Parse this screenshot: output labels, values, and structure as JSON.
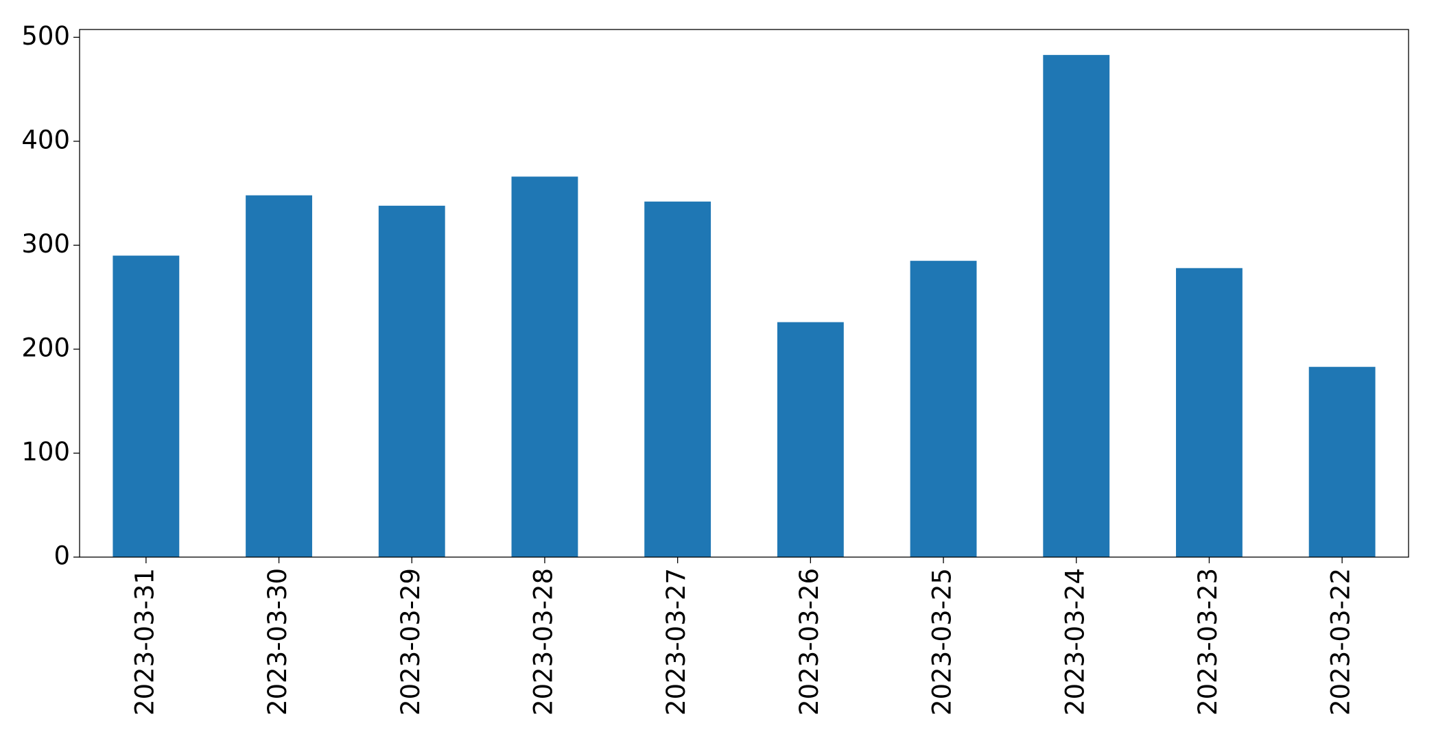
{
  "chart_data": {
    "type": "bar",
    "categories": [
      "2023-03-31",
      "2023-03-30",
      "2023-03-29",
      "2023-03-28",
      "2023-03-27",
      "2023-03-26",
      "2023-03-25",
      "2023-03-24",
      "2023-03-23",
      "2023-03-22"
    ],
    "values": [
      290,
      348,
      338,
      366,
      342,
      226,
      285,
      483,
      278,
      183
    ],
    "color": "#1f77b4",
    "ylim": [
      0,
      507.5
    ],
    "yticks": [
      0,
      100,
      200,
      300,
      400,
      500
    ],
    "grid": false
  }
}
